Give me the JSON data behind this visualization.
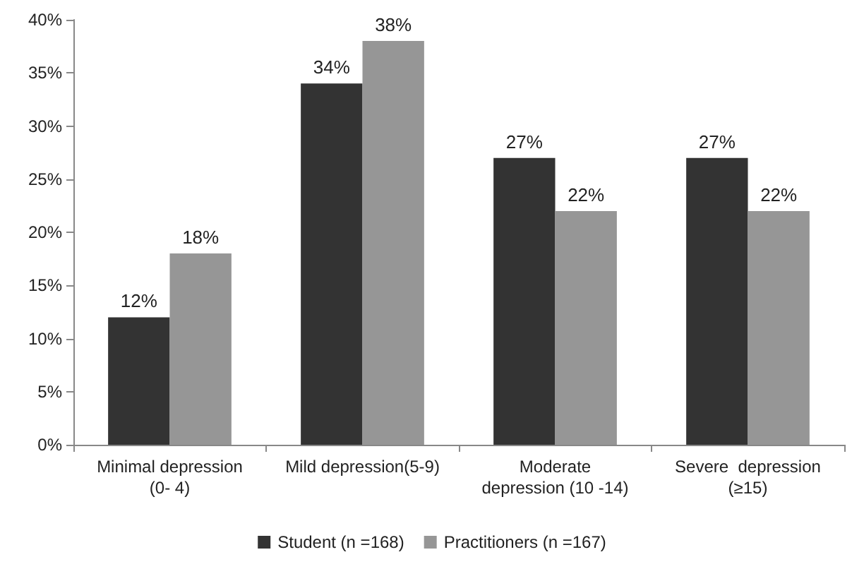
{
  "chart_data": {
    "type": "bar",
    "categories": [
      "Minimal depression\n(0- 4)",
      "Mild depression(5-9)",
      "Moderate\ndepression (10 -14)",
      "Severe  depression\n(≥15)"
    ],
    "series": [
      {
        "name": "Student (n =168)",
        "color": "#333333",
        "values": [
          12,
          34,
          27,
          27
        ],
        "value_labels": [
          "12%",
          "34%",
          "27%",
          "27%"
        ]
      },
      {
        "name": "Practitioners (n =167)",
        "color": "#969696",
        "values": [
          18,
          38,
          22,
          22
        ],
        "value_labels": [
          "18%",
          "38%",
          "22%",
          "22%"
        ]
      }
    ],
    "ylim": [
      0,
      40
    ],
    "yticks": [
      {
        "value": 0,
        "label": "0%"
      },
      {
        "value": 5,
        "label": "5%"
      },
      {
        "value": 10,
        "label": "10%"
      },
      {
        "value": 15,
        "label": "15%"
      },
      {
        "value": 20,
        "label": "20%"
      },
      {
        "value": 25,
        "label": "25%"
      },
      {
        "value": 30,
        "label": "30%"
      },
      {
        "value": 35,
        "label": "35%"
      },
      {
        "value": 40,
        "label": "40%"
      }
    ],
    "grid": false,
    "legend": "bottom"
  }
}
